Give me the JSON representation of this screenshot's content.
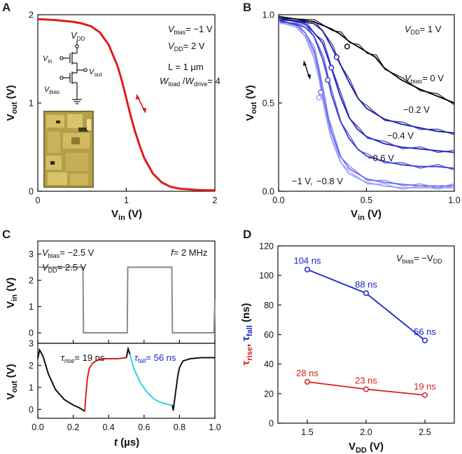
{
  "panels": {
    "A": {
      "letter": "A"
    },
    "B": {
      "letter": "B"
    },
    "C": {
      "letter": "C"
    },
    "D": {
      "letter": "D"
    }
  },
  "colors": {
    "red": "#e01b1b",
    "blue": "#1a22c8",
    "black": "#111111",
    "gray": "#8a8a8a",
    "cyan": "#28d6e8",
    "pink": "#ffb0b0"
  },
  "chart_data": [
    {
      "id": "A",
      "type": "line",
      "title": "",
      "xlabel": "V_in (V)",
      "ylabel": "V_out (V)",
      "xlim": [
        0,
        2
      ],
      "ylim": [
        0,
        2
      ],
      "xticks": [
        "0",
        "1",
        "2"
      ],
      "yticks": [
        "0",
        "1",
        "2"
      ],
      "series": [
        {
          "name": "transfer",
          "color": "#e01b1b",
          "x": [
            0,
            0.2,
            0.4,
            0.5,
            0.6,
            0.7,
            0.8,
            0.9,
            0.95,
            1.0,
            1.05,
            1.1,
            1.15,
            1.2,
            1.3,
            1.4,
            1.5,
            1.6,
            1.8,
            2.0
          ],
          "y": [
            1.95,
            1.94,
            1.92,
            1.9,
            1.87,
            1.8,
            1.66,
            1.42,
            1.25,
            1.05,
            0.85,
            0.67,
            0.52,
            0.38,
            0.2,
            0.1,
            0.05,
            0.03,
            0.015,
            0.01
          ]
        }
      ],
      "annotations": {
        "vbias": "= −1 V",
        "vdd": "= 2 V",
        "length": "L = 1 µm",
        "ratio": "= 4",
        "circuit_vdd": "V",
        "circuit_vin": "V",
        "circuit_vout": "V",
        "circuit_vbias": "V"
      }
    },
    {
      "id": "B",
      "type": "line",
      "xlabel": "V_in (V)",
      "ylabel": "V_out (V)",
      "xlim": [
        0,
        1
      ],
      "ylim": [
        0,
        1
      ],
      "xticks": [
        "0.0",
        "0.5",
        "1.0"
      ],
      "yticks": [
        "0.0",
        "0.5",
        "1.0"
      ],
      "vdd_label": "= 1 V",
      "series": [
        {
          "name": "Vbias = 0 V",
          "label": "= 0 V",
          "color": "#000000",
          "x": [
            0,
            0.2,
            0.3,
            0.35,
            0.4,
            0.45,
            0.5,
            0.55,
            0.6,
            0.7,
            0.8,
            0.9,
            1.0
          ],
          "y": [
            0.99,
            0.96,
            0.92,
            0.89,
            0.85,
            0.82,
            0.79,
            0.76,
            0.7,
            0.63,
            0.58,
            0.54,
            0.5
          ],
          "marker": [
            0.39,
            0.82
          ]
        },
        {
          "name": "Vbias = -0.2 V",
          "label": "−0.2 V",
          "color": "#1a1f9e",
          "x": [
            0,
            0.2,
            0.25,
            0.3,
            0.35,
            0.4,
            0.45,
            0.5,
            0.6,
            0.7,
            0.8,
            0.9,
            1.0
          ],
          "y": [
            0.98,
            0.95,
            0.91,
            0.82,
            0.72,
            0.62,
            0.53,
            0.47,
            0.41,
            0.38,
            0.36,
            0.34,
            0.33
          ],
          "marker": [
            0.33,
            0.76
          ]
        },
        {
          "name": "Vbias = -0.4 V",
          "label": "−0.4 V",
          "color": "#2121c4",
          "x": [
            0,
            0.15,
            0.2,
            0.25,
            0.3,
            0.35,
            0.4,
            0.45,
            0.5,
            0.6,
            0.7,
            0.8,
            0.9,
            1.0
          ],
          "y": [
            0.98,
            0.95,
            0.9,
            0.84,
            0.7,
            0.54,
            0.42,
            0.35,
            0.31,
            0.27,
            0.25,
            0.24,
            0.23,
            0.22
          ],
          "marker": [
            0.3,
            0.7
          ]
        },
        {
          "name": "Vbias = -0.6 V",
          "label": "−0.6 V",
          "color": "#3d3fda",
          "x": [
            0,
            0.15,
            0.2,
            0.25,
            0.28,
            0.3,
            0.35,
            0.4,
            0.45,
            0.5,
            0.6,
            0.7,
            0.8,
            0.9,
            1.0
          ],
          "y": [
            0.97,
            0.93,
            0.88,
            0.75,
            0.64,
            0.55,
            0.4,
            0.3,
            0.24,
            0.2,
            0.17,
            0.15,
            0.14,
            0.14,
            0.13
          ],
          "marker": [
            0.28,
            0.63
          ]
        },
        {
          "name": "Vbias = -0.8 V",
          "label": "−0.8 V",
          "color": "#6a6cf0",
          "x": [
            0,
            0.1,
            0.15,
            0.2,
            0.23,
            0.25,
            0.28,
            0.3,
            0.35,
            0.4,
            0.5,
            0.6,
            0.7,
            0.8,
            0.9,
            1.0
          ],
          "y": [
            0.97,
            0.94,
            0.9,
            0.8,
            0.68,
            0.56,
            0.42,
            0.34,
            0.2,
            0.13,
            0.07,
            0.05,
            0.04,
            0.03,
            0.03,
            0.03
          ],
          "marker": [
            0.24,
            0.56
          ]
        },
        {
          "name": "Vbias = -1 V",
          "label": "−1 V,",
          "color": "#9a9cf7",
          "x": [
            0,
            0.1,
            0.15,
            0.2,
            0.23,
            0.25,
            0.28,
            0.3,
            0.35,
            0.4,
            0.5,
            0.6,
            0.7,
            0.8,
            0.9,
            1.0
          ],
          "y": [
            0.96,
            0.93,
            0.88,
            0.76,
            0.64,
            0.52,
            0.38,
            0.3,
            0.17,
            0.1,
            0.05,
            0.03,
            0.02,
            0.02,
            0.02,
            0.02
          ],
          "marker": [
            0.23,
            0.53
          ]
        }
      ]
    },
    {
      "id": "C",
      "type": "line",
      "xlabel": "t (µs)",
      "xlim": [
        0,
        1
      ],
      "xticks": [
        "0.0",
        "0.2",
        "0.4",
        "0.6",
        "0.8",
        "1.0"
      ],
      "top": {
        "ylabel": "V_in (V)",
        "ylim": [
          -0.4,
          3.5
        ],
        "yticks": [
          "0",
          "1",
          "2",
          "3"
        ],
        "series": {
          "color": "#8a8a8a",
          "x": [
            0,
            0.005,
            0.255,
            0.258,
            0.505,
            0.508,
            0.757,
            0.76,
            0.995,
            1.0
          ],
          "y": [
            2.5,
            2.5,
            2.5,
            0,
            0,
            2.5,
            2.5,
            0,
            0,
            1.3
          ]
        }
      },
      "bottom": {
        "ylabel": "V_out (V)",
        "ylim": [
          -0.4,
          3.0
        ],
        "yticks": [
          "0",
          "1",
          "2",
          "3"
        ],
        "series": [
          {
            "name": "base",
            "color": "#111111",
            "x": [
              0.0,
              0.01,
              0.03,
              0.06,
              0.1,
              0.15,
              0.2,
              0.24,
              0.26,
              0.265
            ],
            "y": [
              2.3,
              2.7,
              2.4,
              1.6,
              0.9,
              0.45,
              0.2,
              0.05,
              -0.05,
              -0.1
            ]
          },
          {
            "name": "rise",
            "color": "#e01b1b",
            "x": [
              0.265,
              0.27,
              0.28,
              0.29,
              0.31,
              0.34,
              0.38,
              0.45,
              0.5
            ],
            "y": [
              -0.1,
              0.5,
              1.4,
              1.85,
              2.1,
              2.25,
              2.3,
              2.3,
              2.35
            ]
          },
          {
            "name": "fall-start",
            "color": "#111111",
            "x": [
              0.5,
              0.51,
              0.52
            ],
            "y": [
              2.35,
              2.75,
              2.5
            ]
          },
          {
            "name": "fall",
            "color": "#28d6e8",
            "x": [
              0.52,
              0.54,
              0.58,
              0.62,
              0.66,
              0.7,
              0.74,
              0.76
            ],
            "y": [
              2.5,
              1.9,
              1.2,
              0.75,
              0.45,
              0.3,
              0.22,
              0.2
            ]
          },
          {
            "name": "base2",
            "color": "#111111",
            "x": [
              0.76,
              0.765,
              0.775,
              0.79,
              0.8,
              0.82,
              0.86,
              0.92,
              1.0
            ],
            "y": [
              0.2,
              -0.05,
              0.6,
              1.5,
              1.9,
              2.2,
              2.3,
              2.35,
              2.35
            ]
          }
        ]
      },
      "annotations": {
        "vbias": "= −2.5 V",
        "vdd": "= 2.5 V",
        "freq": "= 2 MHz",
        "tau_rise": "= 19 ns",
        "tau_fall": "= 56 ns"
      }
    },
    {
      "id": "D",
      "type": "line",
      "xlabel": "V_DD (V)",
      "ylabel": "τ_rise, τ_fall (ns)",
      "xlim": [
        1.25,
        2.75
      ],
      "ylim": [
        0,
        120
      ],
      "xticks": [
        "1.5",
        "2.0",
        "2.5"
      ],
      "yticks": [
        "0",
        "20",
        "40",
        "60",
        "80",
        "100",
        "120"
      ],
      "vbias_label": "= −V",
      "series": [
        {
          "name": "tau_fall",
          "color": "#1a22c8",
          "x": [
            1.5,
            2.0,
            2.5
          ],
          "y": [
            104,
            88,
            56
          ],
          "labels": [
            "104 ns",
            "88 ns",
            "56 ns"
          ]
        },
        {
          "name": "tau_rise",
          "color": "#e01b1b",
          "x": [
            1.5,
            2.0,
            2.5
          ],
          "y": [
            28,
            23,
            19
          ],
          "labels": [
            "28 ns",
            "23 ns",
            "19 ns"
          ]
        }
      ]
    }
  ]
}
